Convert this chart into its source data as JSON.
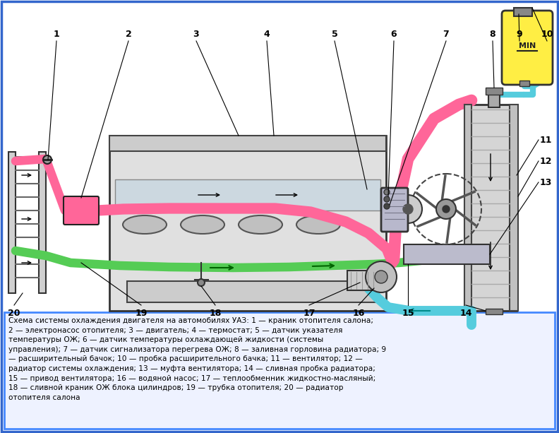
{
  "bg_color": "#ffffff",
  "border_color": "#3366cc",
  "pink": "#ff6699",
  "green": "#55cc55",
  "cyan": "#55ccdd",
  "yellow": "#ffee44",
  "desc_bg": "#eef2ff",
  "desc_border": "#4488ff",
  "description": "Схема системы охлаждения двигателя на автомобилях УАЗ: 1 — краник отопителя салона;\n2 — электронасос отопителя; 3 — двигатель; 4 — термостат; 5 — датчик указателя\nтемпературы ОЖ; 6 — датчик температуры охлаждающей жидкости (системы\nуправления); 7 — датчик сигнализатора перегрева ОЖ; 8 — заливная горловина радиатора; 9\n— расширительный бачок; 10 — пробка расширительного бачка; 11 — вентилятор; 12 —\nрадиатор системы охлаждения; 13 — муфта вентилятора; 14 — сливная пробка радиатора;\n15 — привод вентилятора; 16 — водяной насос; 17 — теплообменник жидкостно-масляный;\n18 — сливной краник ОЖ блока цилиндров; 19 — трубка отопителя; 20 — радиатор\nотопителя салона"
}
